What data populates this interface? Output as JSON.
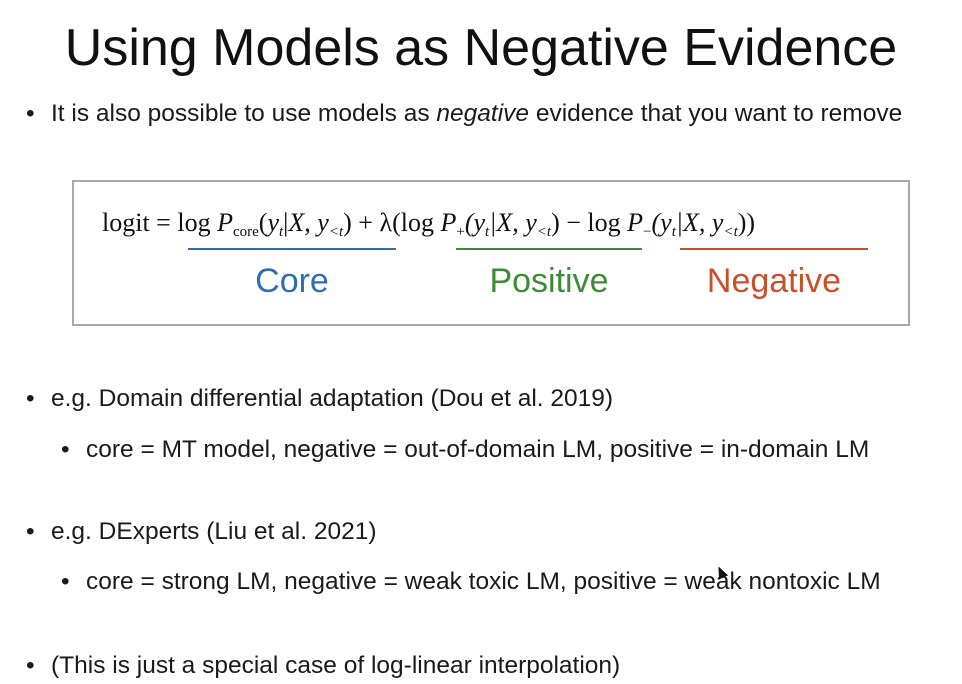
{
  "slide": {
    "title": "Using Models as Negative Evidence",
    "bullet_char": "•",
    "intro": {
      "before": "It is also possible to use models as ",
      "emphasis": "negative",
      "after": " evidence that you want to remove"
    },
    "formula": {
      "lhs": "logit = ",
      "core_term": {
        "log": "log ",
        "P": "P",
        "sub": "core",
        "args_open": "(",
        "y": "y",
        "y_sub": "t",
        "bar": "|",
        "X": "X",
        "comma": ", ",
        "y2": "y",
        "y2_sub": "<t",
        "args_close": ")"
      },
      "plus_lambda": " + λ(",
      "positive_term": {
        "log": "log ",
        "P": "P",
        "sub": "+",
        "args": "(y",
        "y_sub": "t",
        "mid": "|X, y",
        "y2_sub": "<t",
        "close": ")"
      },
      "minus": " − ",
      "negative_term": {
        "log": "log ",
        "P": "P",
        "sub": "−",
        "args": "(y",
        "y_sub": "t",
        "mid": "|X, y",
        "y2_sub": "<t",
        "close": "))"
      }
    },
    "labels": {
      "core": "Core",
      "positive": "Positive",
      "negative": "Negative"
    },
    "colors": {
      "core": "#2f6db5",
      "positive": "#3d8b37",
      "negative": "#c8502a",
      "box_border": "#a8a8a8"
    },
    "bullets": [
      {
        "text": "e.g. Domain differential adaptation (Dou et al. 2019)"
      },
      {
        "text": "core = MT model, negative = out-of-domain LM, positive = in-domain LM"
      },
      {
        "text": "e.g. DExperts (Liu et al. 2021)"
      },
      {
        "text": "core = strong LM, negative = weak toxic LM, positive = weak nontoxic LM"
      },
      {
        "text": "(This is just a special case of log-linear interpolation)"
      }
    ]
  }
}
